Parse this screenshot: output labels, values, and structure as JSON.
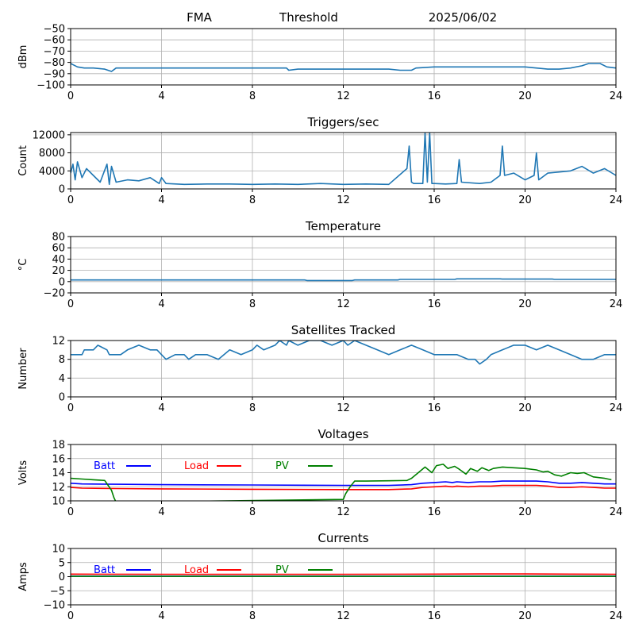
{
  "header": {
    "station": "FMA",
    "mode": "Threshold",
    "date": "2025/06/02"
  },
  "colors": {
    "series": "#1f77b4",
    "batt": "#0000ff",
    "load": "#ff0000",
    "pv": "#008000",
    "grid": "#b0b0b0"
  },
  "chart_data": [
    {
      "id": "threshold",
      "type": "line",
      "title": "",
      "xlabel": "",
      "ylabel": "dBm",
      "xlim": [
        0,
        24
      ],
      "ylim": [
        -100,
        -50
      ],
      "xticks": [
        0,
        4,
        8,
        12,
        16,
        20,
        24
      ],
      "yticks": [
        -100,
        -90,
        -80,
        -70,
        -60,
        -50
      ],
      "grid": true,
      "series": [
        {
          "x": [
            0,
            0.3,
            0.6,
            1,
            1.5,
            1.8,
            2,
            2.5,
            3,
            4,
            5,
            6,
            7,
            8,
            9,
            9.5,
            9.6,
            10,
            11,
            12,
            13,
            14,
            14.5,
            15,
            15.2,
            16,
            17,
            18,
            19,
            20,
            20.5,
            21,
            21.5,
            22,
            22.5,
            22.8,
            23.3,
            23.6,
            24
          ],
          "y": [
            -81,
            -84,
            -85,
            -85,
            -86,
            -88,
            -85,
            -85,
            -85,
            -85,
            -85,
            -85,
            -85,
            -85,
            -85,
            -85,
            -87,
            -86,
            -86,
            -86,
            -86,
            -86,
            -87,
            -87,
            -85,
            -84,
            -84,
            -84,
            -84,
            -84,
            -85,
            -86,
            -86,
            -85,
            -83,
            -81,
            -81,
            -84,
            -85
          ]
        }
      ]
    },
    {
      "id": "triggers",
      "type": "line",
      "title": "Triggers/sec",
      "xlabel": "",
      "ylabel": "Count",
      "xlim": [
        0,
        24
      ],
      "ylim": [
        0,
        12500
      ],
      "xticks": [
        0,
        4,
        8,
        12,
        16,
        20,
        24
      ],
      "yticks": [
        0,
        4000,
        8000,
        12000
      ],
      "grid": true,
      "series": [
        {
          "x": [
            0,
            0.1,
            0.2,
            0.3,
            0.5,
            0.7,
            1,
            1.3,
            1.6,
            1.7,
            1.8,
            2,
            2.5,
            3,
            3.5,
            3.9,
            4,
            4.2,
            5,
            6,
            7,
            8,
            9,
            10,
            11,
            12,
            13,
            14,
            14.8,
            14.9,
            15,
            15.1,
            15.5,
            15.6,
            15.7,
            15.8,
            15.9,
            16,
            16.5,
            17,
            17.1,
            17.2,
            18,
            18.5,
            18.9,
            19,
            19.1,
            19.5,
            20,
            20.4,
            20.5,
            20.6,
            21,
            22,
            22.5,
            23,
            23.5,
            24
          ],
          "y": [
            3500,
            5500,
            2000,
            6000,
            2500,
            4500,
            3000,
            1500,
            5500,
            1000,
            5000,
            1500,
            2000,
            1800,
            2500,
            1200,
            2500,
            1200,
            1000,
            1100,
            1100,
            1000,
            1100,
            1000,
            1200,
            1000,
            1100,
            1000,
            4500,
            9500,
            1500,
            1200,
            1200,
            12500,
            1500,
            12500,
            1200,
            1200,
            1100,
            1200,
            6500,
            1500,
            1200,
            1500,
            3000,
            9500,
            3000,
            3500,
            2000,
            3000,
            8000,
            2000,
            3500,
            4000,
            5000,
            3500,
            4500,
            3000
          ]
        }
      ]
    },
    {
      "id": "temperature",
      "type": "line",
      "title": "Temperature",
      "xlabel": "",
      "ylabel": "°C",
      "xlim": [
        0,
        24
      ],
      "ylim": [
        -20,
        80
      ],
      "xticks": [
        0,
        4,
        8,
        12,
        16,
        20,
        24
      ],
      "yticks": [
        -20,
        0,
        20,
        40,
        60,
        80
      ],
      "grid": true,
      "series": [
        {
          "x": [
            0,
            10.3,
            10.4,
            12.4,
            12.5,
            14.4,
            14.5,
            16.9,
            17,
            18.9,
            19,
            21.2,
            21.3,
            24
          ],
          "y": [
            3,
            3,
            2,
            2,
            3,
            3,
            4,
            4,
            5,
            5,
            4.5,
            4.5,
            4,
            4
          ]
        }
      ]
    },
    {
      "id": "satellites",
      "type": "line",
      "title": "Satellites Tracked",
      "xlabel": "",
      "ylabel": "Number",
      "xlim": [
        0,
        24
      ],
      "ylim": [
        0,
        12
      ],
      "xticks": [
        0,
        4,
        8,
        12,
        16,
        20,
        24
      ],
      "yticks": [
        0,
        4,
        8,
        12
      ],
      "grid": true,
      "series": [
        {
          "x": [
            0,
            0.5,
            0.6,
            1,
            1.2,
            1.6,
            1.7,
            2.2,
            2.5,
            3,
            3.5,
            3.8,
            4,
            4.2,
            4.6,
            5,
            5.2,
            5.5,
            6,
            6.5,
            7,
            7.5,
            8,
            8.2,
            8.5,
            9,
            9.2,
            9.5,
            9.6,
            10,
            10.5,
            11,
            11.5,
            12,
            12.2,
            12.5,
            13,
            13.5,
            14,
            14.5,
            15,
            15.5,
            16,
            16.5,
            17,
            17.5,
            17.8,
            18,
            18.3,
            18.5,
            19,
            19.5,
            20,
            20.5,
            21,
            21.5,
            22,
            22.5,
            23,
            23.5,
            23.7,
            24
          ],
          "y": [
            9,
            9,
            10,
            10,
            11,
            10,
            9,
            9,
            10,
            11,
            10,
            10,
            9,
            8,
            9,
            9,
            8,
            9,
            9,
            8,
            10,
            9,
            10,
            11,
            10,
            11,
            12,
            11,
            12,
            11,
            12,
            12,
            11,
            12,
            11,
            12,
            11,
            10,
            9,
            10,
            11,
            10,
            9,
            9,
            9,
            8,
            8,
            7,
            8,
            9,
            10,
            11,
            11,
            10,
            11,
            10,
            9,
            8,
            8,
            9,
            9,
            9
          ]
        }
      ]
    },
    {
      "id": "voltages",
      "type": "line",
      "title": "Voltages",
      "xlabel": "",
      "ylabel": "Volts",
      "xlim": [
        0,
        24
      ],
      "ylim": [
        10,
        18
      ],
      "xticks": [
        0,
        4,
        8,
        12,
        16,
        20,
        24
      ],
      "yticks": [
        10,
        12,
        14,
        16,
        18
      ],
      "grid": true,
      "legend": "top-left",
      "series": [
        {
          "name": "Batt",
          "color": "#0000ff",
          "x": [
            0,
            0.5,
            2,
            4,
            8,
            12,
            14,
            15,
            15.5,
            16,
            16.5,
            16.8,
            17,
            17.5,
            18,
            18.5,
            19,
            19.5,
            20,
            20.5,
            21,
            21.5,
            22,
            22.5,
            23,
            23.5,
            24
          ],
          "y": [
            12.5,
            12.4,
            12.35,
            12.3,
            12.25,
            12.2,
            12.2,
            12.3,
            12.5,
            12.6,
            12.7,
            12.6,
            12.7,
            12.6,
            12.7,
            12.7,
            12.8,
            12.8,
            12.8,
            12.8,
            12.7,
            12.5,
            12.5,
            12.6,
            12.5,
            12.4,
            12.4
          ]
        },
        {
          "name": "Load",
          "color": "#ff0000",
          "x": [
            0,
            0.5,
            2,
            4,
            8,
            12,
            14,
            15,
            15.5,
            16,
            16.5,
            16.8,
            17,
            17.5,
            18,
            18.5,
            19,
            19.5,
            20,
            20.5,
            21,
            21.5,
            22,
            22.5,
            23,
            23.5,
            24
          ],
          "y": [
            11.9,
            11.8,
            11.75,
            11.7,
            11.65,
            11.6,
            11.6,
            11.7,
            11.9,
            12.0,
            12.1,
            12.0,
            12.1,
            12.0,
            12.1,
            12.1,
            12.2,
            12.2,
            12.2,
            12.2,
            12.1,
            11.9,
            11.9,
            12.0,
            11.9,
            11.8,
            11.8
          ]
        },
        {
          "name": "PV",
          "color": "#008000",
          "x": [
            0,
            0.5,
            1,
            1.5,
            1.8,
            1.9,
            2,
            12,
            12.1,
            12.3,
            12.5,
            13,
            14,
            14.8,
            15,
            15.3,
            15.6,
            15.9,
            16.1,
            16.4,
            16.6,
            16.9,
            17.1,
            17.4,
            17.6,
            17.9,
            18.1,
            18.4,
            18.6,
            19,
            19.5,
            20,
            20.5,
            20.8,
            21,
            21.3,
            21.6,
            22,
            22.3,
            22.6,
            23,
            23.5,
            23.8
          ],
          "y": [
            13.2,
            13.1,
            13.0,
            12.9,
            11.5,
            10.5,
            9.8,
            10.2,
            11.0,
            12.0,
            12.8,
            12.8,
            12.85,
            12.9,
            13.2,
            14.0,
            14.8,
            14.0,
            15.0,
            15.2,
            14.6,
            14.9,
            14.5,
            13.8,
            14.6,
            14.2,
            14.7,
            14.3,
            14.6,
            14.8,
            14.7,
            14.6,
            14.4,
            14.1,
            14.2,
            13.7,
            13.5,
            14.0,
            13.9,
            14.0,
            13.4,
            13.2,
            13.0
          ]
        }
      ]
    },
    {
      "id": "currents",
      "type": "line",
      "title": "Currents",
      "xlabel": "",
      "ylabel": "Amps",
      "xlim": [
        0,
        24
      ],
      "ylim": [
        -10,
        10
      ],
      "xticks": [
        0,
        4,
        8,
        12,
        16,
        20,
        24
      ],
      "yticks": [
        -10,
        -5,
        0,
        5,
        10
      ],
      "grid": true,
      "legend": "top-left",
      "series": [
        {
          "name": "Batt",
          "color": "#0000ff",
          "x": [
            0,
            24
          ],
          "y": [
            0.2,
            0.2
          ]
        },
        {
          "name": "Load",
          "color": "#ff0000",
          "x": [
            0,
            4,
            8,
            12,
            16,
            18,
            20,
            22,
            24
          ],
          "y": [
            0.9,
            0.85,
            0.85,
            0.85,
            0.9,
            0.95,
            0.95,
            0.9,
            0.85
          ]
        },
        {
          "name": "PV",
          "color": "#008000",
          "x": [
            0,
            24
          ],
          "y": [
            0.1,
            0.1
          ]
        }
      ]
    }
  ]
}
